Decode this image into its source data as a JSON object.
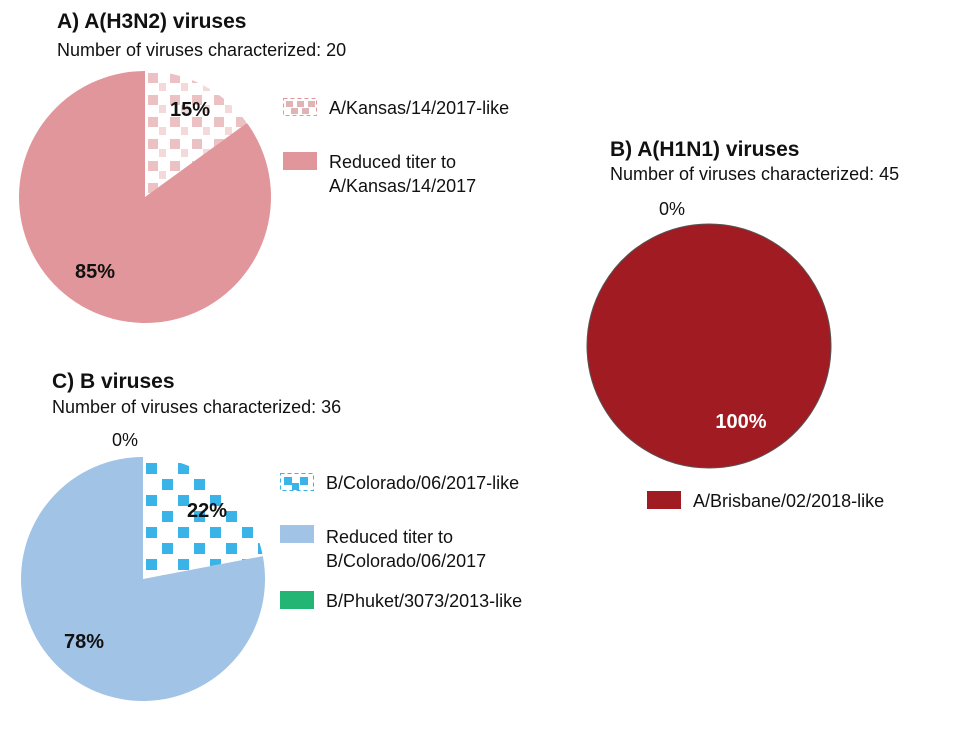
{
  "chart_data": [
    {
      "type": "pie",
      "title": "A) A(H3N2) viruses",
      "subtitle": "Number of viruses characterized: 20",
      "slices": [
        {
          "label": "A/Kansas/14/2017-like",
          "value": 15,
          "display": "15%",
          "color": "#e0969a",
          "pattern": "squares"
        },
        {
          "label": "Reduced titer to\nA/Kansas/14/2017",
          "value": 85,
          "display": "85%",
          "color": "#e0969a",
          "pattern": "solid"
        }
      ]
    },
    {
      "type": "pie",
      "title": "B) A(H1N1) viruses",
      "subtitle": "Number of viruses characterized:  45",
      "slices": [
        {
          "label": "A/Brisbane/02/2018-like",
          "value": 100,
          "display": "100%",
          "color": "#a01c22",
          "pattern": "solid"
        },
        {
          "label": "",
          "value": 0,
          "display": "0%",
          "color": "#ffffff",
          "pattern": "none"
        }
      ]
    },
    {
      "type": "pie",
      "title": "C) B viruses",
      "subtitle": "Number of viruses characterized: 36",
      "slices": [
        {
          "label": "B/Colorado/06/2017-like",
          "value": 22,
          "display": "22%",
          "color": "#3ab4e8",
          "pattern": "squares"
        },
        {
          "label": "Reduced titer to\nB/Colorado/06/2017",
          "value": 78,
          "display": "78%",
          "color": "#a0c3e6",
          "pattern": "solid"
        },
        {
          "label": "B/Phuket/3073/2013-like",
          "value": 0,
          "display": "0%",
          "color": "#22b573",
          "pattern": "solid"
        }
      ]
    }
  ]
}
